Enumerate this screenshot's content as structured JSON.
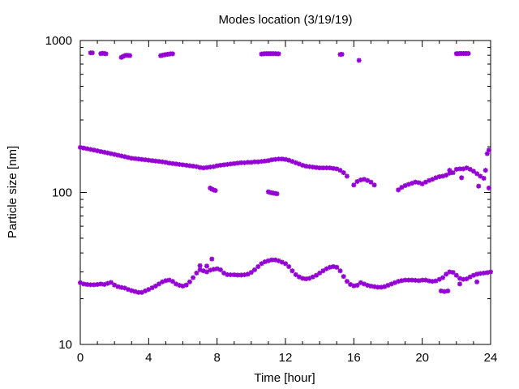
{
  "chart_data": {
    "type": "scatter",
    "title": "Modes location (3/19/19)",
    "xlabel": "Time [hour]",
    "ylabel": "Particle size [nm]",
    "xlim": [
      0,
      24
    ],
    "ylim": [
      10,
      1000
    ],
    "yscale": "log",
    "xticks": [
      0,
      4,
      8,
      12,
      16,
      20,
      24
    ],
    "xtick_labels": [
      "0",
      "4",
      "8",
      "12",
      "16",
      "20",
      "24"
    ],
    "yticks": [
      10,
      100,
      1000
    ],
    "ytick_labels": [
      "10",
      "100",
      "1000"
    ],
    "grid": false,
    "legend": "none",
    "marker_color": "#9400D3",
    "marker": "asterisk",
    "series": [
      {
        "values": [
          [
            0.0,
            198
          ],
          [
            0.2,
            196
          ],
          [
            0.4,
            194
          ],
          [
            0.6,
            192
          ],
          [
            0.8,
            190
          ],
          [
            1.0,
            188
          ],
          [
            1.2,
            186
          ],
          [
            1.4,
            184
          ],
          [
            1.6,
            182
          ],
          [
            1.8,
            180
          ],
          [
            2.0,
            178
          ],
          [
            2.2,
            176
          ],
          [
            2.4,
            174
          ],
          [
            2.6,
            172
          ],
          [
            2.8,
            170
          ],
          [
            3.0,
            168
          ],
          [
            3.2,
            167
          ],
          [
            3.4,
            166
          ],
          [
            3.6,
            165
          ],
          [
            3.8,
            164
          ],
          [
            4.0,
            163
          ],
          [
            4.2,
            162
          ],
          [
            4.4,
            161
          ],
          [
            4.6,
            160
          ],
          [
            4.8,
            159
          ],
          [
            5.0,
            158
          ],
          [
            5.2,
            156
          ],
          [
            5.4,
            155
          ],
          [
            5.6,
            154
          ],
          [
            5.8,
            153
          ],
          [
            6.0,
            152
          ],
          [
            6.2,
            151
          ],
          [
            6.4,
            150
          ],
          [
            6.6,
            149
          ],
          [
            6.8,
            148
          ],
          [
            7.0,
            146
          ],
          [
            7.2,
            145
          ],
          [
            7.4,
            146
          ],
          [
            7.6,
            147
          ],
          [
            7.8,
            148
          ],
          [
            8.0,
            150
          ],
          [
            8.2,
            151
          ],
          [
            8.4,
            152
          ],
          [
            8.6,
            153
          ],
          [
            8.8,
            154
          ],
          [
            9.0,
            155
          ],
          [
            9.2,
            156
          ],
          [
            9.4,
            157
          ],
          [
            9.6,
            157
          ],
          [
            9.8,
            158
          ],
          [
            10.0,
            158
          ],
          [
            10.2,
            159
          ],
          [
            10.4,
            159
          ],
          [
            10.6,
            160
          ],
          [
            10.8,
            161
          ],
          [
            11.0,
            162
          ],
          [
            11.2,
            164
          ],
          [
            11.4,
            165
          ],
          [
            11.6,
            166
          ],
          [
            11.8,
            166
          ],
          [
            12.0,
            165
          ],
          [
            12.2,
            163
          ],
          [
            12.4,
            160
          ],
          [
            12.6,
            157
          ],
          [
            12.8,
            154
          ],
          [
            13.0,
            151
          ],
          [
            13.2,
            149
          ],
          [
            13.4,
            148
          ],
          [
            13.6,
            147
          ],
          [
            13.8,
            146
          ],
          [
            14.0,
            145
          ],
          [
            14.2,
            145
          ],
          [
            14.4,
            145
          ],
          [
            14.6,
            145
          ],
          [
            14.8,
            144
          ],
          [
            15.0,
            143
          ],
          [
            15.2,
            140
          ],
          [
            15.4,
            135
          ],
          [
            15.6,
            128
          ],
          [
            16.0,
            112
          ],
          [
            16.2,
            118
          ],
          [
            16.4,
            121
          ],
          [
            16.6,
            122
          ],
          [
            16.8,
            120
          ],
          [
            17.0,
            117
          ],
          [
            17.2,
            112
          ],
          [
            18.6,
            104
          ],
          [
            18.8,
            108
          ],
          [
            19.0,
            111
          ],
          [
            19.2,
            113
          ],
          [
            19.4,
            115
          ],
          [
            19.6,
            117
          ],
          [
            19.8,
            116
          ],
          [
            20.0,
            114
          ],
          [
            20.2,
            117
          ],
          [
            20.4,
            120
          ],
          [
            20.6,
            122
          ],
          [
            20.8,
            125
          ],
          [
            21.0,
            127
          ],
          [
            21.2,
            128
          ],
          [
            21.4,
            130
          ],
          [
            21.6,
            134
          ],
          [
            21.8,
            135
          ],
          [
            22.0,
            142
          ],
          [
            22.2,
            143
          ],
          [
            22.4,
            143
          ],
          [
            22.6,
            145
          ],
          [
            22.8,
            142
          ],
          [
            23.0,
            138
          ],
          [
            23.2,
            133
          ],
          [
            23.4,
            128
          ],
          [
            23.6,
            124
          ],
          [
            23.7,
            140
          ],
          [
            23.8,
            180
          ],
          [
            23.9,
            190
          ]
        ]
      },
      {
        "values": [
          [
            0.0,
            25.5
          ],
          [
            0.2,
            25.0
          ],
          [
            0.4,
            24.8
          ],
          [
            0.6,
            24.7
          ],
          [
            0.8,
            24.7
          ],
          [
            1.0,
            24.8
          ],
          [
            1.2,
            25.0
          ],
          [
            1.4,
            24.8
          ],
          [
            1.6,
            25.2
          ],
          [
            1.8,
            25.6
          ],
          [
            2.0,
            24.6
          ],
          [
            2.2,
            24.0
          ],
          [
            2.4,
            23.7
          ],
          [
            2.6,
            23.5
          ],
          [
            2.8,
            23.0
          ],
          [
            3.0,
            22.6
          ],
          [
            3.2,
            22.3
          ],
          [
            3.4,
            22.0
          ],
          [
            3.6,
            22.0
          ],
          [
            3.8,
            22.5
          ],
          [
            4.0,
            23.0
          ],
          [
            4.2,
            23.6
          ],
          [
            4.4,
            24.2
          ],
          [
            4.6,
            25.0
          ],
          [
            4.8,
            25.8
          ],
          [
            5.0,
            26.3
          ],
          [
            5.2,
            26.5
          ],
          [
            5.4,
            26.0
          ],
          [
            5.6,
            25.0
          ],
          [
            5.8,
            24.5
          ],
          [
            6.0,
            24.2
          ],
          [
            6.2,
            24.6
          ],
          [
            6.4,
            25.8
          ],
          [
            6.6,
            27.5
          ],
          [
            6.8,
            29.5
          ],
          [
            7.0,
            31.0
          ],
          [
            7.2,
            30.5
          ],
          [
            7.4,
            30.0
          ],
          [
            7.6,
            30.8
          ],
          [
            7.8,
            31.2
          ],
          [
            8.0,
            31.5
          ],
          [
            8.2,
            31.0
          ],
          [
            8.4,
            29.5
          ],
          [
            8.6,
            28.8
          ],
          [
            8.8,
            28.7
          ],
          [
            9.0,
            28.7
          ],
          [
            9.2,
            28.6
          ],
          [
            9.4,
            28.6
          ],
          [
            9.6,
            28.7
          ],
          [
            9.8,
            29.0
          ],
          [
            10.0,
            29.8
          ],
          [
            10.2,
            31.0
          ],
          [
            10.4,
            32.5
          ],
          [
            10.6,
            34.0
          ],
          [
            10.8,
            35.0
          ],
          [
            11.0,
            35.5
          ],
          [
            11.2,
            36.0
          ],
          [
            11.4,
            36.0
          ],
          [
            11.6,
            35.5
          ],
          [
            11.8,
            34.8
          ],
          [
            12.0,
            34.0
          ],
          [
            12.2,
            32.5
          ],
          [
            12.4,
            30.5
          ],
          [
            12.6,
            28.8
          ],
          [
            12.8,
            27.8
          ],
          [
            13.0,
            27.2
          ],
          [
            13.2,
            27.0
          ],
          [
            13.4,
            27.2
          ],
          [
            13.6,
            27.8
          ],
          [
            13.8,
            28.5
          ],
          [
            14.0,
            29.5
          ],
          [
            14.2,
            30.5
          ],
          [
            14.4,
            31.5
          ],
          [
            14.6,
            32.2
          ],
          [
            14.8,
            32.5
          ],
          [
            15.0,
            32.2
          ],
          [
            15.2,
            30.5
          ],
          [
            15.4,
            28.0
          ],
          [
            15.6,
            26.0
          ],
          [
            15.8,
            24.8
          ],
          [
            16.0,
            24.3
          ],
          [
            16.2,
            24.5
          ],
          [
            16.4,
            25.5
          ],
          [
            16.6,
            25.0
          ],
          [
            16.8,
            24.5
          ],
          [
            17.0,
            24.2
          ],
          [
            17.2,
            24.0
          ],
          [
            17.4,
            23.8
          ],
          [
            17.6,
            23.8
          ],
          [
            17.8,
            24.0
          ],
          [
            18.0,
            24.5
          ],
          [
            18.2,
            25.0
          ],
          [
            18.4,
            25.5
          ],
          [
            18.6,
            26.0
          ],
          [
            18.8,
            26.3
          ],
          [
            19.0,
            26.5
          ],
          [
            19.2,
            26.5
          ],
          [
            19.4,
            26.5
          ],
          [
            19.6,
            26.4
          ],
          [
            19.8,
            26.3
          ],
          [
            20.0,
            26.5
          ],
          [
            20.2,
            26.5
          ],
          [
            20.4,
            26.2
          ],
          [
            20.6,
            26.0
          ],
          [
            20.8,
            26.2
          ],
          [
            21.0,
            26.8
          ],
          [
            21.2,
            27.5
          ],
          [
            21.4,
            29.0
          ],
          [
            21.6,
            30.0
          ],
          [
            21.8,
            29.8
          ],
          [
            22.0,
            28.5
          ],
          [
            22.2,
            27.2
          ],
          [
            22.4,
            26.8
          ],
          [
            22.6,
            27.0
          ],
          [
            22.8,
            27.8
          ],
          [
            23.0,
            28.5
          ],
          [
            23.2,
            29.0
          ],
          [
            23.4,
            29.3
          ],
          [
            23.6,
            29.5
          ],
          [
            23.8,
            29.7
          ],
          [
            24.0,
            30.0
          ]
        ]
      },
      {
        "values": [
          [
            0.6,
            830
          ],
          [
            0.7,
            830
          ],
          [
            1.2,
            820
          ],
          [
            1.3,
            825
          ],
          [
            1.4,
            822
          ],
          [
            1.5,
            818
          ],
          [
            2.4,
            775
          ],
          [
            2.5,
            785
          ],
          [
            2.6,
            795
          ],
          [
            2.7,
            800
          ],
          [
            2.8,
            798
          ],
          [
            2.9,
            796
          ],
          [
            4.7,
            795
          ],
          [
            4.8,
            800
          ],
          [
            4.9,
            805
          ],
          [
            5.0,
            808
          ],
          [
            5.1,
            812
          ],
          [
            5.2,
            815
          ],
          [
            5.3,
            818
          ],
          [
            5.4,
            818
          ],
          [
            10.6,
            815
          ],
          [
            10.7,
            818
          ],
          [
            10.8,
            820
          ],
          [
            10.9,
            820
          ],
          [
            11.0,
            820
          ],
          [
            11.1,
            820
          ],
          [
            11.2,
            820
          ],
          [
            11.3,
            820
          ],
          [
            11.4,
            820
          ],
          [
            11.5,
            818
          ],
          [
            11.6,
            818
          ],
          [
            15.2,
            810
          ],
          [
            15.3,
            812
          ],
          [
            16.3,
            740
          ],
          [
            22.0,
            820
          ],
          [
            22.1,
            820
          ],
          [
            22.2,
            822
          ],
          [
            22.3,
            822
          ],
          [
            22.4,
            822
          ],
          [
            22.5,
            822
          ],
          [
            22.6,
            822
          ],
          [
            22.7,
            822
          ]
        ]
      },
      {
        "values": [
          [
            7.6,
            107
          ],
          [
            7.7,
            105
          ],
          [
            7.8,
            104
          ],
          [
            7.9,
            103
          ],
          [
            11.0,
            101
          ],
          [
            11.1,
            100
          ],
          [
            11.2,
            99.5
          ],
          [
            11.3,
            99
          ],
          [
            11.4,
            98.5
          ],
          [
            11.5,
            98
          ],
          [
            7.0,
            33.0
          ],
          [
            7.7,
            36.5
          ],
          [
            7.4,
            32.8
          ],
          [
            21.1,
            22.5
          ],
          [
            21.3,
            22.3
          ],
          [
            21.5,
            22.5
          ],
          [
            22.2,
            25.0
          ],
          [
            23.2,
            25.8
          ],
          [
            23.3,
            110
          ],
          [
            23.9,
            107
          ],
          [
            22.3,
            125
          ],
          [
            21.6,
            140
          ]
        ]
      }
    ]
  }
}
